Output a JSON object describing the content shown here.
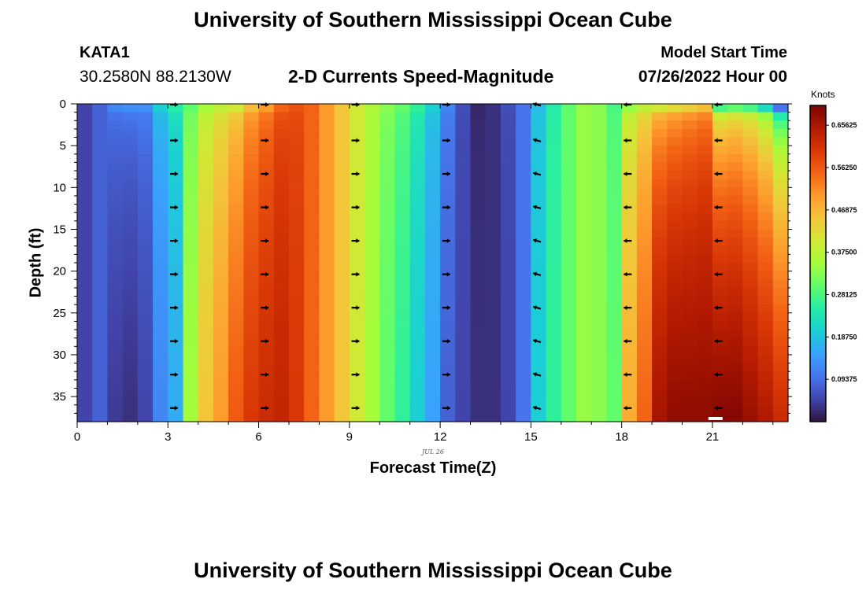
{
  "header": {
    "title": "University of Southern Mississippi Ocean Cube",
    "station": "KATA1",
    "coords": "30.2580N  88.2130W",
    "plot_title": "2-D Currents Speed-Magnitude",
    "model_start_label": "Model Start Time",
    "model_start_value": "07/26/2022 Hour 00"
  },
  "footer": {
    "title": "University of Southern Mississippi Ocean Cube"
  },
  "chart_data": {
    "type": "heatmap",
    "title": "2-D Currents Speed-Magnitude",
    "xlabel": "Forecast Time(Z)",
    "ylabel": "Depth (ft)",
    "x_sublabel": "JUL 26",
    "xlim": [
      0,
      23.5
    ],
    "ylim": [
      38,
      0
    ],
    "x_ticks": [
      0,
      3,
      6,
      9,
      12,
      15,
      18,
      21
    ],
    "x_tick_labels": [
      "0",
      "3",
      "6",
      "9",
      "12",
      "15",
      "18",
      "21"
    ],
    "y_ticks": [
      0,
      5,
      10,
      15,
      20,
      25,
      30,
      35
    ],
    "y_tick_labels": [
      "0",
      "5",
      "10",
      "15",
      "20",
      "25",
      "30",
      "35"
    ],
    "colorbar": {
      "label": "Knots",
      "ticks": [
        0.09375,
        0.1875,
        0.28125,
        0.375,
        0.46875,
        0.5625,
        0.65625
      ],
      "tick_labels": [
        "0.09375",
        "0.18750",
        "0.28125",
        "0.37500",
        "0.46875",
        "0.56250",
        "0.65625"
      ],
      "range": [
        0,
        0.7
      ],
      "colors": [
        "#30123b",
        "#4145ab",
        "#4675ed",
        "#39a2fc",
        "#1bcfd4",
        "#24eca6",
        "#61fc6c",
        "#a4fc3b",
        "#d1e834",
        "#f3c63a",
        "#fe9b2d",
        "#f36315",
        "#d93806",
        "#b11901",
        "#7a0402"
      ]
    },
    "hours": [
      0,
      0.5,
      1,
      1.5,
      2,
      2.5,
      3,
      3.5,
      4,
      4.5,
      5,
      5.5,
      6,
      6.5,
      7,
      7.5,
      8,
      8.5,
      9,
      9.5,
      10,
      10.5,
      11,
      11.5,
      12,
      12.5,
      13,
      13.5,
      14,
      14.5,
      15,
      15.5,
      16,
      16.5,
      17,
      17.5,
      18,
      18.5,
      19,
      19.5,
      20,
      20.5,
      21,
      21.5,
      22,
      22.5,
      23
    ],
    "speed_surface_knots": [
      0.05,
      0.08,
      0.12,
      0.13,
      0.13,
      0.2,
      0.25,
      0.3,
      0.35,
      0.38,
      0.4,
      0.46,
      0.5,
      0.55,
      0.57,
      0.55,
      0.5,
      0.45,
      0.4,
      0.36,
      0.33,
      0.3,
      0.26,
      0.2,
      0.12,
      0.06,
      0.02,
      0.03,
      0.06,
      0.1,
      0.18,
      0.25,
      0.3,
      0.34,
      0.33,
      0.28,
      0.34,
      0.38,
      0.4,
      0.42,
      0.44,
      0.46,
      0.28,
      0.3,
      0.28,
      0.22,
      0.1
    ],
    "speed_bottom_knots": [
      0.05,
      0.08,
      0.04,
      0.03,
      0.05,
      0.12,
      0.16,
      0.35,
      0.45,
      0.5,
      0.56,
      0.6,
      0.62,
      0.63,
      0.6,
      0.55,
      0.5,
      0.45,
      0.4,
      0.35,
      0.3,
      0.26,
      0.2,
      0.15,
      0.08,
      0.05,
      0.03,
      0.03,
      0.05,
      0.1,
      0.2,
      0.26,
      0.3,
      0.34,
      0.33,
      0.3,
      0.48,
      0.55,
      0.66,
      0.68,
      0.68,
      0.68,
      0.69,
      0.69,
      0.67,
      0.65,
      0.62
    ],
    "vector_times": [
      3.2,
      6.2,
      9.2,
      12.2,
      15.2,
      18.2,
      21.2
    ],
    "vector_depths": [
      0,
      4,
      8,
      12,
      16,
      20,
      24,
      28,
      32,
      36
    ],
    "vector_directions": [
      "east",
      "east",
      "east",
      "east",
      "southwest",
      "west",
      "west"
    ]
  }
}
